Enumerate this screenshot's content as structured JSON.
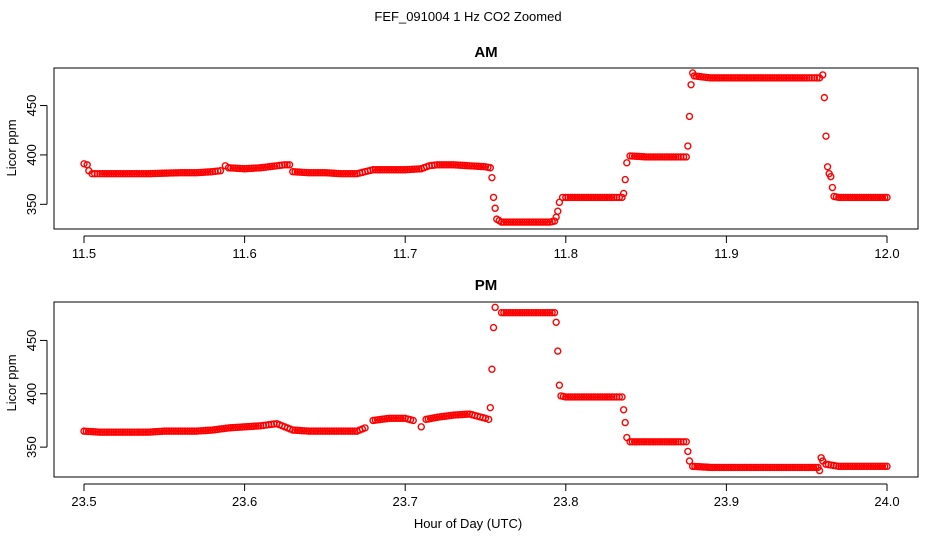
{
  "figure": {
    "title": "FEF_091004  1 Hz CO2 Zoomed",
    "xlabel": "Hour of Day (UTC)"
  },
  "colors": {
    "points": "#ff0000",
    "axes": "#000000"
  },
  "chart_data": [
    {
      "type": "scatter",
      "title": "AM",
      "xlabel": "Hour of Day (UTC)",
      "ylabel": "Licor ppm",
      "xlim": [
        11.5,
        12.0
      ],
      "ylim": [
        325,
        488
      ],
      "xticks": [
        11.5,
        11.6,
        11.7,
        11.8,
        11.9,
        12.0
      ],
      "xtick_labels": [
        "11.5",
        "11.6",
        "11.7",
        "11.8",
        "11.9",
        "12.0"
      ],
      "yticks": [
        350,
        400,
        450
      ],
      "ytick_labels": [
        "350",
        "400",
        "450"
      ],
      "grid": false,
      "marker": "open-circle",
      "series": [
        {
          "points": [
            [
              11.5,
              391
            ],
            [
              11.502,
              390
            ],
            [
              11.503,
              384
            ],
            [
              11.505,
              381
            ],
            [
              11.51,
              381
            ],
            [
              11.52,
              381
            ],
            [
              11.53,
              381
            ],
            [
              11.54,
              381
            ],
            [
              11.55,
              381.5
            ],
            [
              11.56,
              382
            ],
            [
              11.57,
              382
            ],
            [
              11.58,
              383
            ],
            [
              11.585,
              384
            ],
            [
              11.588,
              389
            ],
            [
              11.59,
              387
            ],
            [
              11.6,
              386
            ],
            [
              11.61,
              387
            ],
            [
              11.62,
              389
            ],
            [
              11.625,
              390
            ],
            [
              11.628,
              390
            ],
            [
              11.63,
              383
            ],
            [
              11.64,
              382
            ],
            [
              11.65,
              382
            ],
            [
              11.66,
              381
            ],
            [
              11.67,
              381
            ],
            [
              11.675,
              383
            ],
            [
              11.68,
              385
            ],
            [
              11.69,
              385
            ],
            [
              11.7,
              385
            ],
            [
              11.71,
              386
            ],
            [
              11.715,
              389
            ],
            [
              11.72,
              390
            ],
            [
              11.73,
              390
            ],
            [
              11.74,
              389
            ],
            [
              11.75,
              388
            ],
            [
              11.753,
              387
            ],
            [
              11.754,
              377
            ],
            [
              11.755,
              357
            ],
            [
              11.756,
              346
            ],
            [
              11.757,
              335
            ],
            [
              11.76,
              332
            ],
            [
              11.77,
              332
            ],
            [
              11.78,
              332
            ],
            [
              11.79,
              332
            ],
            [
              11.793,
              333
            ],
            [
              11.794,
              337
            ],
            [
              11.795,
              343
            ],
            [
              11.796,
              352
            ],
            [
              11.798,
              357
            ],
            [
              11.8,
              357
            ],
            [
              11.81,
              357
            ],
            [
              11.82,
              357
            ],
            [
              11.83,
              357
            ],
            [
              11.835,
              357
            ],
            [
              11.836,
              361
            ],
            [
              11.837,
              375
            ],
            [
              11.838,
              392
            ],
            [
              11.84,
              399
            ],
            [
              11.85,
              398
            ],
            [
              11.86,
              398
            ],
            [
              11.87,
              398
            ],
            [
              11.875,
              398
            ],
            [
              11.876,
              409
            ],
            [
              11.877,
              439
            ],
            [
              11.878,
              471
            ],
            [
              11.879,
              483
            ],
            [
              11.88,
              480
            ],
            [
              11.89,
              478
            ],
            [
              11.9,
              478
            ],
            [
              11.91,
              478
            ],
            [
              11.92,
              478
            ],
            [
              11.93,
              478
            ],
            [
              11.94,
              478
            ],
            [
              11.95,
              478
            ],
            [
              11.958,
              478
            ],
            [
              11.96,
              481
            ],
            [
              11.961,
              458
            ],
            [
              11.962,
              419
            ],
            [
              11.963,
              388
            ],
            [
              11.964,
              381
            ],
            [
              11.965,
              378
            ],
            [
              11.966,
              367
            ],
            [
              11.967,
              358
            ],
            [
              11.97,
              357
            ],
            [
              11.98,
              357
            ],
            [
              11.99,
              357
            ],
            [
              12.0,
              357
            ]
          ]
        }
      ]
    },
    {
      "type": "scatter",
      "title": "PM",
      "xlabel": "Hour of Day (UTC)",
      "ylabel": "Licor ppm",
      "xlim": [
        23.5,
        24.0
      ],
      "ylim": [
        322,
        486
      ],
      "xticks": [
        23.5,
        23.6,
        23.7,
        23.8,
        23.9,
        24.0
      ],
      "xtick_labels": [
        "23.5",
        "23.6",
        "23.7",
        "23.8",
        "23.9",
        "24.0"
      ],
      "yticks": [
        350,
        400,
        450
      ],
      "ytick_labels": [
        "350",
        "400",
        "450"
      ],
      "grid": false,
      "marker": "open-circle",
      "series": [
        {
          "points": [
            [
              23.5,
              365
            ],
            [
              23.51,
              364
            ],
            [
              23.52,
              364
            ],
            [
              23.53,
              364
            ],
            [
              23.54,
              364
            ],
            [
              23.55,
              365
            ],
            [
              23.56,
              365
            ],
            [
              23.57,
              365
            ],
            [
              23.58,
              366
            ],
            [
              23.59,
              368
            ],
            [
              23.6,
              369
            ],
            [
              23.61,
              370
            ],
            [
              23.615,
              371
            ],
            [
              23.62,
              372
            ],
            [
              23.625,
              369
            ],
            [
              23.63,
              366
            ],
            [
              23.64,
              365
            ],
            [
              23.65,
              365
            ],
            [
              23.66,
              365
            ],
            [
              23.67,
              365
            ],
            [
              23.675,
              368
            ],
            [
              23.68,
              375
            ],
            [
              23.69,
              377
            ],
            [
              23.7,
              377
            ],
            [
              23.705,
              375
            ],
            [
              23.71,
              369
            ],
            [
              23.713,
              376
            ],
            [
              23.72,
              378
            ],
            [
              23.73,
              380
            ],
            [
              23.74,
              381
            ],
            [
              23.745,
              379
            ],
            [
              23.75,
              377
            ],
            [
              23.752,
              376
            ],
            [
              23.753,
              387
            ],
            [
              23.754,
              423
            ],
            [
              23.755,
              462
            ],
            [
              23.756,
              481
            ],
            [
              23.76,
              476
            ],
            [
              23.77,
              476
            ],
            [
              23.78,
              476
            ],
            [
              23.79,
              476
            ],
            [
              23.793,
              476
            ],
            [
              23.794,
              467
            ],
            [
              23.795,
              440
            ],
            [
              23.796,
              408
            ],
            [
              23.797,
              398
            ],
            [
              23.8,
              397
            ],
            [
              23.81,
              397
            ],
            [
              23.82,
              397
            ],
            [
              23.83,
              397
            ],
            [
              23.835,
              397
            ],
            [
              23.836,
              385
            ],
            [
              23.837,
              373
            ],
            [
              23.838,
              359
            ],
            [
              23.84,
              355
            ],
            [
              23.85,
              355
            ],
            [
              23.86,
              355
            ],
            [
              23.87,
              355
            ],
            [
              23.875,
              355
            ],
            [
              23.876,
              346
            ],
            [
              23.877,
              337
            ],
            [
              23.879,
              332
            ],
            [
              23.89,
              331
            ],
            [
              23.9,
              331
            ],
            [
              23.91,
              331
            ],
            [
              23.92,
              331
            ],
            [
              23.93,
              331
            ],
            [
              23.94,
              331
            ],
            [
              23.95,
              331
            ],
            [
              23.957,
              331
            ],
            [
              23.958,
              328
            ],
            [
              23.959,
              340
            ],
            [
              23.96,
              337
            ],
            [
              23.962,
              334
            ],
            [
              23.97,
              332
            ],
            [
              23.98,
              332
            ],
            [
              23.99,
              332
            ],
            [
              24.0,
              332
            ]
          ]
        }
      ]
    }
  ]
}
